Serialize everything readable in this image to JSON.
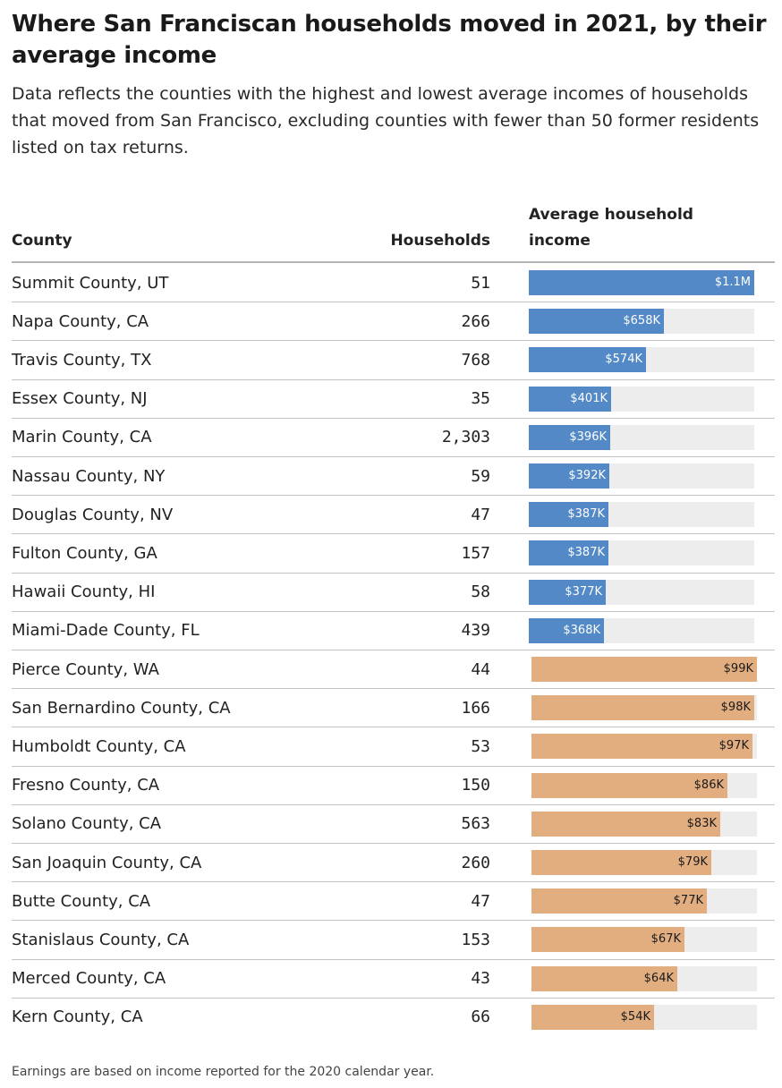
{
  "title": "Where San Franciscan households moved in 2021, by their average income",
  "subtitle": "Data reflects the counties with the highest and lowest average incomes of households that moved from San Francisco, excluding counties with fewer than 50 former residents listed on tax returns.",
  "footnote": "Earnings are based on income reported for the 2020 calendar year.",
  "columns": {
    "county": "County",
    "households": "Households",
    "income": "Average household income"
  },
  "colors": {
    "high": "#5289c6",
    "low": "#e2ae80",
    "track": "#ededed"
  },
  "chart_data": {
    "type": "table",
    "groups": [
      {
        "name": "highest",
        "max": 1100000,
        "rows": [
          {
            "county": "Summit County, UT",
            "households": "51",
            "income": 1100000,
            "label": "$1.1M"
          },
          {
            "county": "Napa County, CA",
            "households": "266",
            "income": 658000,
            "label": "$658K"
          },
          {
            "county": "Travis County, TX",
            "households": "768",
            "income": 574000,
            "label": "$574K"
          },
          {
            "county": "Essex County, NJ",
            "households": "35",
            "income": 401000,
            "label": "$401K"
          },
          {
            "county": "Marin County, CA",
            "households": "2,303",
            "income": 396000,
            "label": "$396K"
          },
          {
            "county": "Nassau County, NY",
            "households": "59",
            "income": 392000,
            "label": "$392K"
          },
          {
            "county": "Douglas County, NV",
            "households": "47",
            "income": 387000,
            "label": "$387K"
          },
          {
            "county": "Fulton County, GA",
            "households": "157",
            "income": 387000,
            "label": "$387K"
          },
          {
            "county": "Hawaii County, HI",
            "households": "58",
            "income": 377000,
            "label": "$377K"
          },
          {
            "county": "Miami-Dade County, FL",
            "households": "439",
            "income": 368000,
            "label": "$368K"
          }
        ]
      },
      {
        "name": "lowest",
        "max": 99000,
        "rows": [
          {
            "county": "Pierce County, WA",
            "households": "44",
            "income": 99000,
            "label": "$99K"
          },
          {
            "county": "San Bernardino County, CA",
            "households": "166",
            "income": 98000,
            "label": "$98K"
          },
          {
            "county": "Humboldt County, CA",
            "households": "53",
            "income": 97000,
            "label": "$97K"
          },
          {
            "county": "Fresno County, CA",
            "households": "150",
            "income": 86000,
            "label": "$86K"
          },
          {
            "county": "Solano County, CA",
            "households": "563",
            "income": 83000,
            "label": "$83K"
          },
          {
            "county": "San Joaquin County, CA",
            "households": "260",
            "income": 79000,
            "label": "$79K"
          },
          {
            "county": "Butte County, CA",
            "households": "47",
            "income": 77000,
            "label": "$77K"
          },
          {
            "county": "Stanislaus County, CA",
            "households": "153",
            "income": 67000,
            "label": "$67K"
          },
          {
            "county": "Merced County, CA",
            "households": "43",
            "income": 64000,
            "label": "$64K"
          },
          {
            "county": "Kern County, CA",
            "households": "66",
            "income": 54000,
            "label": "$54K"
          }
        ]
      }
    ]
  }
}
